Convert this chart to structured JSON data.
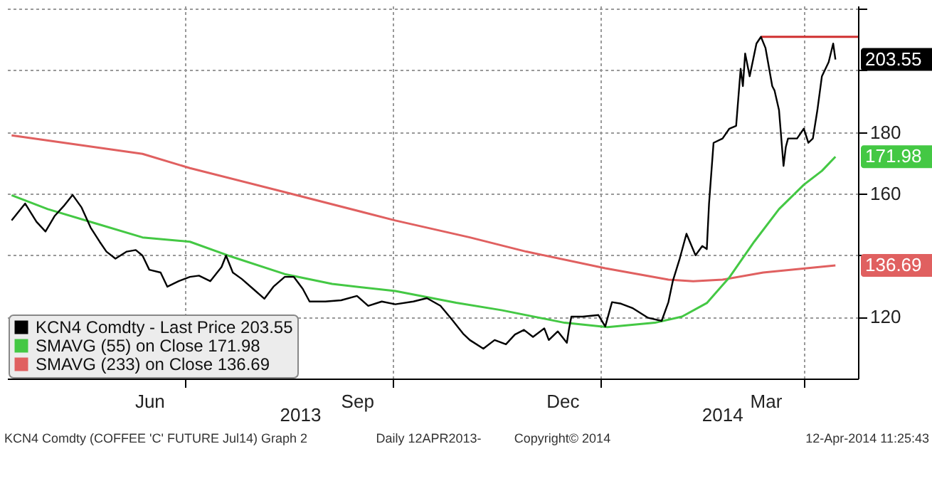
{
  "chart_data": {
    "type": "line",
    "xlim": [
      "2013-04-13",
      "2014-04-25"
    ],
    "xticks": [
      {
        "value": "2013-07-01",
        "label": null
      },
      {
        "value": "2013-10-01",
        "label": null
      },
      {
        "value": "2014-01-01",
        "label": null
      },
      {
        "value": "2014-04-01",
        "label": null
      },
      {
        "value": "2013-06-15",
        "label": "Jun"
      },
      {
        "value": "2013-09-15",
        "label": "Sep"
      },
      {
        "value": "2013-12-15",
        "label": "Dec"
      },
      {
        "value": "2014-03-15",
        "label": "Mar"
      }
    ],
    "ylim": [
      100,
      221
    ],
    "yticks": [
      120,
      {
        "value": 140,
        "label": null
      },
      160,
      180,
      {
        "value": 200,
        "label": null
      },
      {
        "value": 220,
        "label": null
      }
    ],
    "x2lim": [
      "2013-04-13",
      "2014-04-25"
    ],
    "x2ticks": [
      {
        "value": "2013-08-21",
        "label": "2013"
      },
      {
        "value": "2014-02-24",
        "label": "2014"
      }
    ],
    "grid": true,
    "legend": "bottom left",
    "series": [
      {
        "name": "KCN4 Comdty - Last Price 203.55",
        "color": "#000000",
        "x": [
          "2013-04-15",
          "2013-04-21",
          "2013-04-26",
          "2013-04-30",
          "2013-05-04",
          "2013-05-08",
          "2013-05-12",
          "2013-05-16",
          "2013-05-20",
          "2013-05-24",
          "2013-05-27",
          "2013-05-31",
          "2013-06-05",
          "2013-06-09",
          "2013-06-12",
          "2013-06-15",
          "2013-06-20",
          "2013-06-23",
          "2013-06-28",
          "2013-07-03",
          "2013-07-07",
          "2013-07-12",
          "2013-07-17",
          "2013-07-19",
          "2013-07-22",
          "2013-07-26",
          "2013-07-31",
          "2013-08-05",
          "2013-08-09",
          "2013-08-14",
          "2013-08-18",
          "2013-08-22",
          "2013-08-25",
          "2013-09-01",
          "2013-09-08",
          "2013-09-15",
          "2013-09-20",
          "2013-09-26",
          "2013-10-02",
          "2013-10-10",
          "2013-10-16",
          "2013-10-22",
          "2013-10-27",
          "2013-11-01",
          "2013-11-04",
          "2013-11-10",
          "2013-11-15",
          "2013-11-20",
          "2013-11-24",
          "2013-11-28",
          "2013-12-02",
          "2013-12-07",
          "2013-12-09",
          "2013-12-13",
          "2013-12-17",
          "2013-12-18",
          "2013-12-19",
          "2013-12-24",
          "2013-12-31",
          "2014-01-03",
          "2014-01-06",
          "2014-01-10",
          "2014-01-15",
          "2014-01-22",
          "2014-01-28",
          "2014-01-31",
          "2014-02-02",
          "2014-02-05",
          "2014-02-08",
          "2014-02-12",
          "2014-02-15",
          "2014-02-17",
          "2014-02-18",
          "2014-02-20",
          "2014-02-24",
          "2014-02-27",
          "2014-03-02",
          "2014-03-04",
          "2014-03-05",
          "2014-03-06",
          "2014-03-08",
          "2014-03-11",
          "2014-03-13",
          "2014-03-15",
          "2014-03-18",
          "2014-03-19",
          "2014-03-21",
          "2014-03-23",
          "2014-03-24",
          "2014-03-25",
          "2014-03-29",
          "2014-04-01",
          "2014-04-03",
          "2014-04-05",
          "2014-04-07",
          "2014-04-09",
          "2014-04-12",
          "2014-04-14",
          "2014-04-15"
        ],
        "values": [
          151.3,
          156.8,
          150.9,
          147.7,
          152.7,
          155.9,
          159.6,
          155.5,
          149.0,
          144.4,
          141.2,
          138.9,
          141.2,
          141.7,
          139.9,
          135.3,
          134.4,
          129.8,
          131.6,
          133.0,
          133.4,
          131.6,
          136.2,
          139.9,
          134.4,
          132.3,
          129.1,
          125.9,
          129.8,
          133.0,
          133.0,
          129.1,
          125.0,
          125.0,
          125.4,
          126.8,
          123.6,
          125.0,
          124.1,
          125.0,
          126.1,
          123.6,
          119.2,
          114.6,
          112.5,
          109.7,
          112.5,
          111.1,
          114.3,
          115.8,
          113.5,
          116.3,
          112.5,
          115.3,
          111.6,
          116.3,
          120.1,
          120.1,
          120.6,
          116.9,
          124.8,
          124.3,
          122.9,
          119.7,
          118.7,
          124.8,
          131.8,
          138.9,
          147.0,
          140.0,
          143.0,
          142.0,
          156.8,
          176.5,
          177.9,
          181.1,
          182.0,
          200.5,
          194.9,
          205.5,
          198.1,
          208.7,
          210.9,
          207.3,
          194.9,
          193.5,
          187.1,
          169.0,
          175.1,
          177.9,
          177.9,
          181.1,
          176.5,
          177.9,
          187.1,
          198.1,
          202.7,
          208.7,
          203.55
        ]
      },
      {
        "name": "SMAVG (55) on Close 171.98",
        "color": "#44c844",
        "x": [
          "2013-04-15",
          "2013-05-01",
          "2013-05-22",
          "2013-06-12",
          "2013-07-03",
          "2013-07-20",
          "2013-08-14",
          "2013-09-04",
          "2013-10-02",
          "2013-10-29",
          "2013-11-18",
          "2013-12-16",
          "2014-01-04",
          "2014-01-25",
          "2014-02-06",
          "2014-02-17",
          "2014-02-27",
          "2014-03-10",
          "2014-03-21",
          "2014-04-01",
          "2014-04-09",
          "2014-04-15"
        ],
        "values": [
          159.5,
          155.0,
          150.4,
          145.8,
          144.4,
          139.9,
          133.9,
          130.7,
          128.4,
          124.6,
          122.2,
          118.1,
          116.7,
          118.1,
          120.1,
          124.5,
          132.8,
          144.4,
          155.0,
          162.9,
          167.4,
          171.98
        ]
      },
      {
        "name": "SMAVG (233) on Close 136.69",
        "color": "#e06060",
        "x": [
          "2013-04-15",
          "2013-06-12",
          "2013-07-03",
          "2013-08-14",
          "2013-10-02",
          "2013-11-04",
          "2013-11-29",
          "2014-01-03",
          "2014-01-31",
          "2014-02-11",
          "2014-02-24",
          "2014-03-14",
          "2014-04-15"
        ],
        "values": [
          178.9,
          172.9,
          168.3,
          160.5,
          151.3,
          145.8,
          141.2,
          135.8,
          132.1,
          131.6,
          132.1,
          134.4,
          136.69
        ]
      },
      {
        "color": "#d03030",
        "x": [
          "2014-03-13",
          "2014-04-25"
        ],
        "values": [
          210.9,
          210.9
        ]
      }
    ],
    "annotations": [
      "203.55",
      "171.98",
      "136.69",
      "KCN4 Comdty (COFFEE 'C' FUTURE Jul14) Graph 2",
      "Daily 12APR2013-",
      "Copyright© 2014",
      "12-Apr-2014 11:25:43"
    ]
  }
}
